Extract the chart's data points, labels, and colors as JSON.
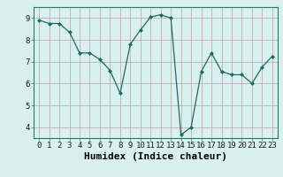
{
  "x": [
    0,
    1,
    2,
    3,
    4,
    5,
    6,
    7,
    8,
    9,
    10,
    11,
    12,
    13,
    14,
    15,
    16,
    17,
    18,
    19,
    20,
    21,
    22,
    23
  ],
  "y": [
    8.9,
    8.75,
    8.75,
    8.35,
    7.4,
    7.4,
    7.1,
    6.6,
    5.55,
    7.8,
    8.45,
    9.05,
    9.15,
    9.0,
    3.65,
    4.0,
    6.55,
    7.4,
    6.55,
    6.4,
    6.4,
    6.0,
    6.75,
    7.25
  ],
  "xlabel": "Humidex (Indice chaleur)",
  "ylim": [
    3.5,
    9.5
  ],
  "xlim": [
    -0.5,
    23.5
  ],
  "yticks": [
    4,
    5,
    6,
    7,
    8,
    9
  ],
  "xticks": [
    0,
    1,
    2,
    3,
    4,
    5,
    6,
    7,
    8,
    9,
    10,
    11,
    12,
    13,
    14,
    15,
    16,
    17,
    18,
    19,
    20,
    21,
    22,
    23
  ],
  "line_color": "#1a6b5e",
  "marker_color": "#1a6b5e",
  "bg_color": "#d8f0f0",
  "grid_color": "#c0a0a0",
  "tick_label_fontsize": 6.5,
  "xlabel_fontsize": 8.0
}
